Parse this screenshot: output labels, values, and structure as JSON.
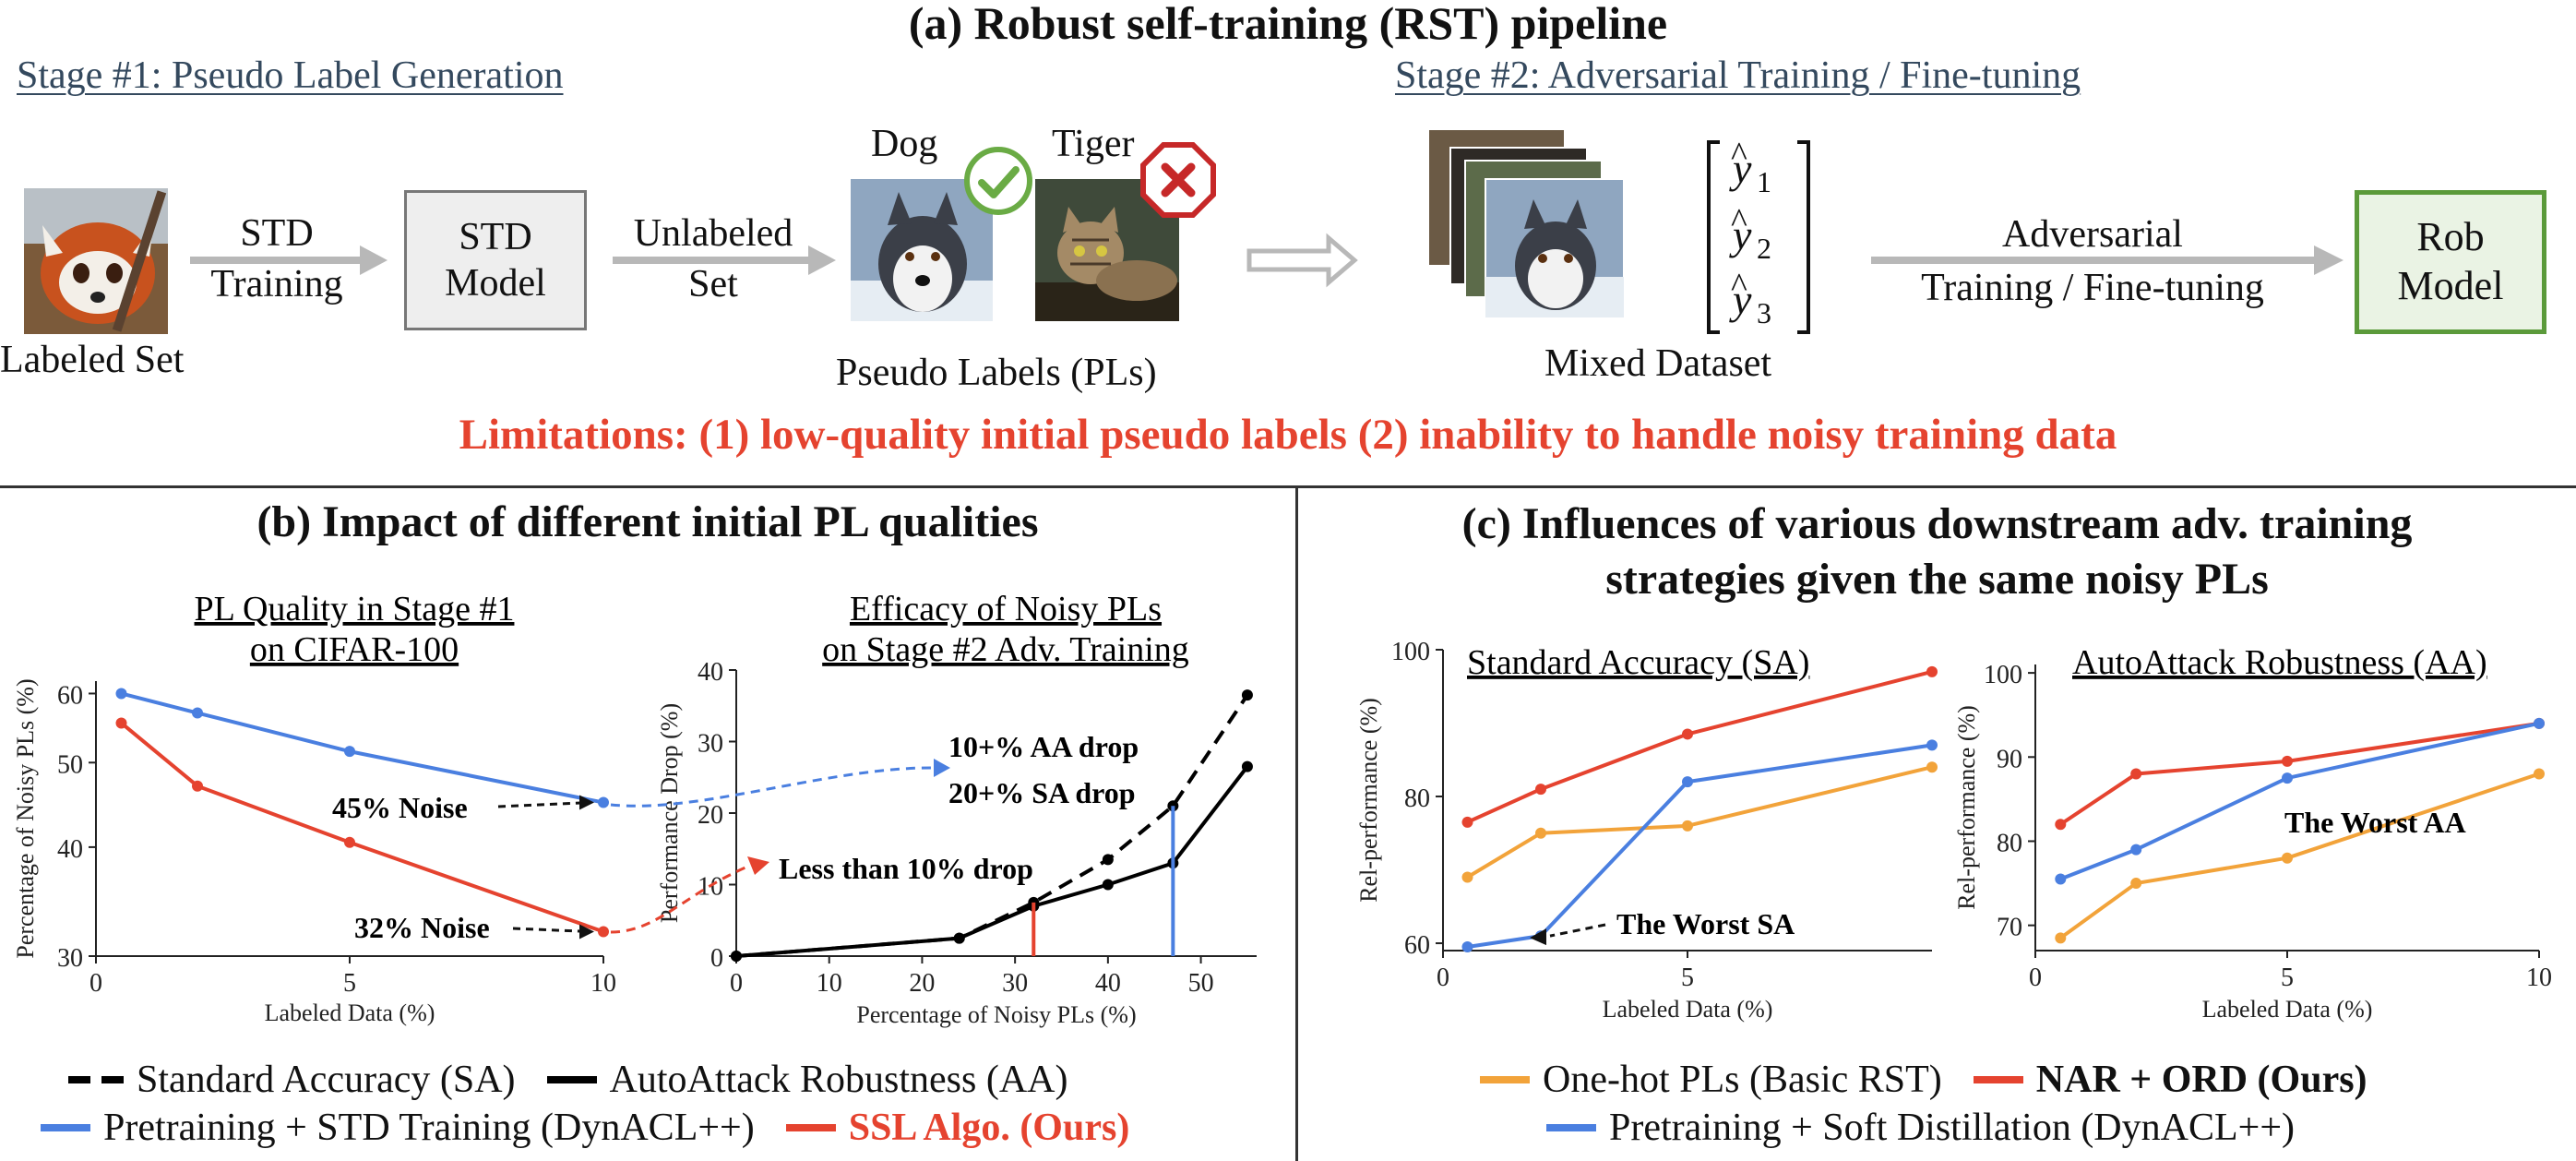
{
  "panel_a": {
    "title": "(a) Robust self-training (RST) pipeline",
    "stage1": "Stage #1: Pseudo Label Generation",
    "stage2": "Stage #2: Adversarial Training / Fine-tuning",
    "labeled_set": "Labeled Set",
    "std_training": [
      "STD",
      "Training"
    ],
    "std_model": [
      "STD",
      "Model"
    ],
    "unlabeled_set": [
      "Unlabeled",
      "Set"
    ],
    "dog": "Dog",
    "tiger": "Tiger",
    "pseudo_labels": "Pseudo Labels (PLs)",
    "mixed_dataset": "Mixed Dataset",
    "yhat_sub": [
      "1",
      "2",
      "3"
    ],
    "adv_training": [
      "Adversarial",
      "Training / Fine-tuning"
    ],
    "rob_model": [
      "Rob",
      "Model"
    ],
    "limitations": "Limitations: (1) low-quality initial pseudo labels (2) inability to handle noisy training data",
    "colors": {
      "limit": "#e5432f",
      "check": "#6aab45",
      "cross": "#c62828",
      "rob_border": "#5b9a3a",
      "rob_fill": "#eaf3e4",
      "std_fill": "#eeeeee"
    }
  },
  "panel_b": {
    "title": "(b) Impact of different initial PL qualities",
    "legend": {
      "sa": "Standard Accuracy (SA)",
      "aa": "AutoAttack Robustness (AA)",
      "pretrain": "Pretraining + STD Training (DynACL++)",
      "ssl": "SSL Algo. (Ours)"
    },
    "chart_data": [
      {
        "type": "line",
        "title": [
          "PL Quality in Stage #1",
          "on CIFAR-100"
        ],
        "xlabel": "Labeled Data (%)",
        "ylabel": "Percentage of Noisy PLs (%)",
        "xlim": [
          0,
          10
        ],
        "ylim": [
          30,
          62
        ],
        "yscale": "log",
        "xticks": [
          0,
          5,
          10
        ],
        "yticks": [
          30,
          40,
          50,
          60
        ],
        "series": [
          {
            "name": "Pretraining + STD Training (DynACL++)",
            "color": "#4a7fe0",
            "x": [
              0.5,
              2,
              5,
              10
            ],
            "y": [
              60,
              57,
              51.5,
              45
            ]
          },
          {
            "name": "SSL Algo. (Ours)",
            "color": "#e5432f",
            "x": [
              0.5,
              2,
              5,
              10
            ],
            "y": [
              55.5,
              47,
              40.5,
              32
            ]
          }
        ],
        "annotations": [
          "45% Noise",
          "32% Noise"
        ]
      },
      {
        "type": "line",
        "title": [
          "Efficacy of Noisy PLs",
          "on Stage #2 Adv. Training"
        ],
        "xlabel": "Percentage of Noisy PLs (%)",
        "ylabel": "Performance Drop (%)",
        "xlim": [
          0,
          56
        ],
        "ylim": [
          0,
          40
        ],
        "xticks": [
          0,
          10,
          20,
          30,
          40,
          50
        ],
        "yticks": [
          0,
          10,
          20,
          30,
          40
        ],
        "series": [
          {
            "name": "Standard Accuracy (SA)",
            "style": "dashed",
            "color": "#000000",
            "x": [
              0,
              24,
              32,
              40,
              47,
              55
            ],
            "y": [
              0,
              2.5,
              7.5,
              13.5,
              21,
              36.5
            ]
          },
          {
            "name": "AutoAttack Robustness (AA)",
            "style": "solid",
            "color": "#000000",
            "x": [
              0,
              24,
              32,
              40,
              47,
              55
            ],
            "y": [
              0,
              2.5,
              7,
              10,
              13,
              26.5
            ]
          }
        ],
        "markers": [
          {
            "x": 32,
            "color": "#e5432f"
          },
          {
            "x": 47,
            "color": "#4a7fe0"
          }
        ],
        "annotations": [
          "10+% AA drop",
          "20+% SA drop",
          "Less than 10% drop"
        ]
      }
    ]
  },
  "panel_c": {
    "title": [
      "(c) Influences of various downstream adv. training",
      "strategies given the same noisy PLs"
    ],
    "legend": {
      "onehot": "One-hot PLs (Basic RST)",
      "nar": "NAR + ORD (Ours)",
      "soft": "Pretraining + Soft Distillation (DynACL++)"
    },
    "chart_data": [
      {
        "type": "line",
        "title": "Standard Accuracy (SA)",
        "xlabel": "Labeled Data (%)",
        "ylabel": "Rel-performance (%)",
        "xlim": [
          0,
          10
        ],
        "ylim": [
          59,
          100
        ],
        "xticks": [
          0,
          5
        ],
        "yticks": [
          60,
          80,
          100
        ],
        "series": [
          {
            "name": "One-hot PLs (Basic RST)",
            "color": "#f2a33a",
            "x": [
              0.5,
              2,
              5,
              10
            ],
            "y": [
              69,
              75,
              76,
              84
            ]
          },
          {
            "name": "NAR + ORD (Ours)",
            "color": "#e5432f",
            "x": [
              0.5,
              2,
              5,
              10
            ],
            "y": [
              76.5,
              81,
              88.5,
              97
            ]
          },
          {
            "name": "Pretraining + Soft Distillation (DynACL++)",
            "color": "#4a7fe0",
            "x": [
              0.5,
              2,
              5,
              10
            ],
            "y": [
              59.5,
              61,
              82,
              87
            ]
          }
        ],
        "annotations": [
          "The Worst SA"
        ]
      },
      {
        "type": "line",
        "title": "AutoAttack Robustness (AA)",
        "xlabel": "Labeled Data (%)",
        "ylabel": "Rel-performance (%)",
        "xlim": [
          0,
          10
        ],
        "ylim": [
          67,
          101
        ],
        "xticks": [
          0,
          5,
          10
        ],
        "yticks": [
          70,
          80,
          90,
          100
        ],
        "series": [
          {
            "name": "One-hot PLs (Basic RST)",
            "color": "#f2a33a",
            "x": [
              0.5,
              2,
              5,
              10
            ],
            "y": [
              68.5,
              75,
              78,
              88
            ]
          },
          {
            "name": "NAR + ORD (Ours)",
            "color": "#e5432f",
            "x": [
              0.5,
              2,
              5,
              10
            ],
            "y": [
              82,
              88,
              89.5,
              94
            ]
          },
          {
            "name": "Pretraining + Soft Distillation (DynACL++)",
            "color": "#4a7fe0",
            "x": [
              0.5,
              2,
              5,
              10
            ],
            "y": [
              75.5,
              79,
              87.5,
              94
            ]
          }
        ],
        "annotations": [
          "The Worst AA"
        ]
      }
    ]
  }
}
